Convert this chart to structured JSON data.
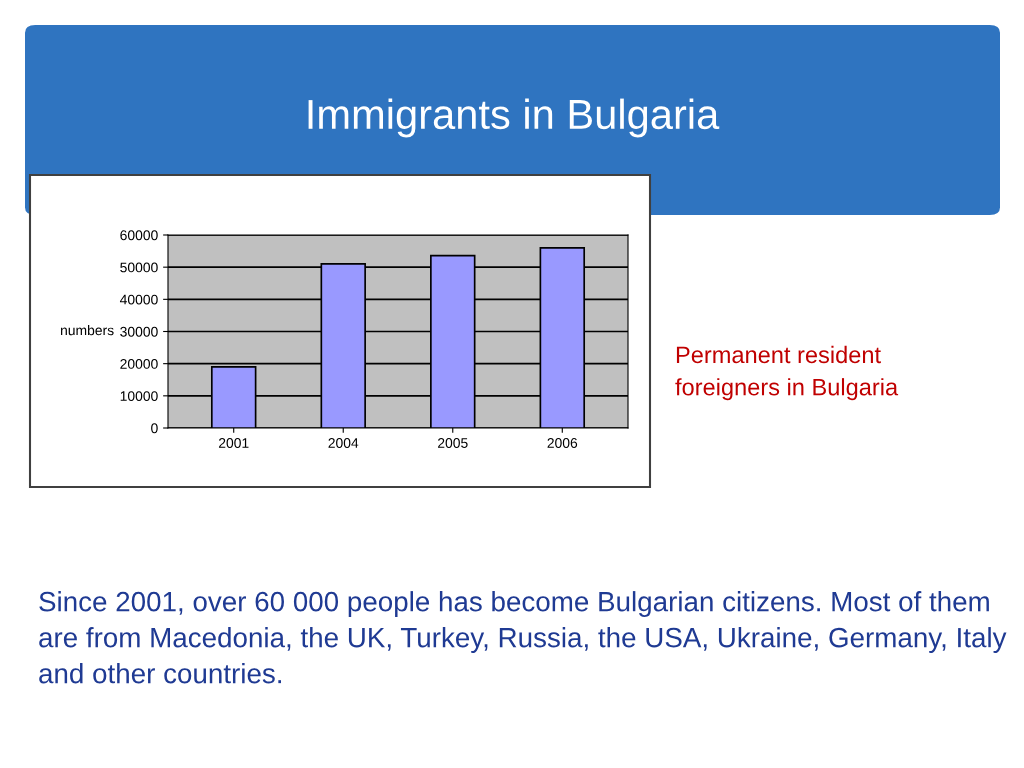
{
  "chart_data": {
    "type": "bar",
    "title": "Immigrants in Bulgaria",
    "ylabel": "numbers",
    "categories": [
      "2001",
      "2004",
      "2005",
      "2006"
    ],
    "values": [
      19000,
      51000,
      53600,
      56000
    ],
    "color": "#9999ff",
    "ylim": [
      0,
      60000
    ],
    "yticks": [
      0,
      10000,
      20000,
      30000,
      40000,
      50000,
      60000
    ],
    "grid": "y",
    "legend": false,
    "annotations": [
      "Permanent resident\nforeigners in Bulgaria",
      "Since 2001, over 60 000 people has become Bulgarian citizens. Most of them are from Macedonia, the UK, Turkey, Russia, the USA, Ukraine, Germany, Italy and other countries."
    ]
  }
}
